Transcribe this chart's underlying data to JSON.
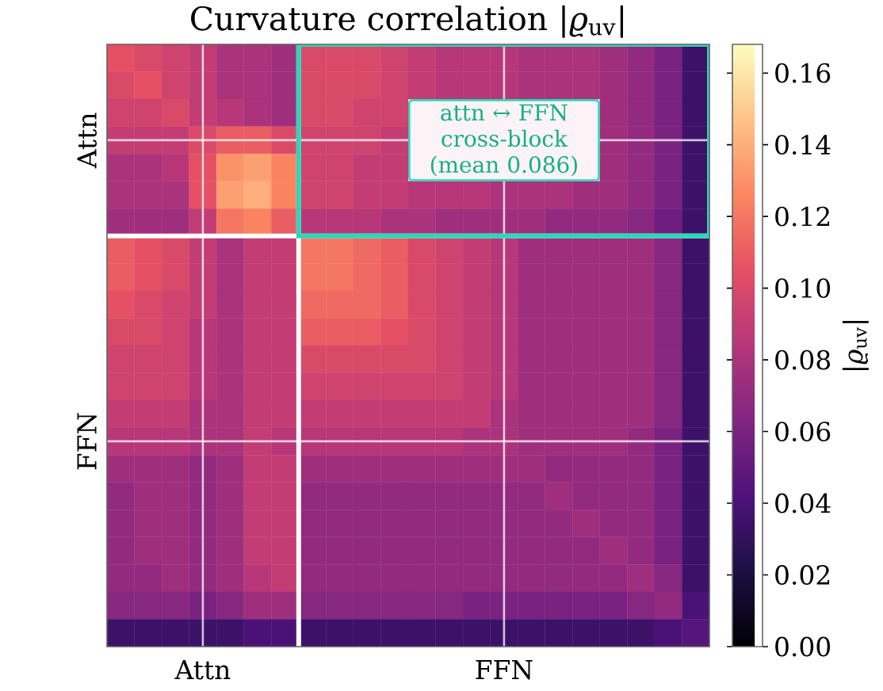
{
  "chart_data": {
    "type": "heatmap",
    "title": "Curvature correlation |*ϱ*$_{uv}$|",
    "categories": [
      null,
      null,
      null,
      "Attn",
      null,
      null,
      null,
      null,
      null,
      null,
      null,
      null,
      null,
      null,
      "FFN",
      null,
      null,
      null,
      null,
      null,
      null,
      null
    ],
    "y_categories": [
      null,
      null,
      null,
      "Attn",
      null,
      null,
      null,
      null,
      null,
      null,
      null,
      null,
      null,
      null,
      "FFN",
      null,
      null,
      null,
      null,
      null,
      null,
      null
    ],
    "cells": [
      [
        0.105,
        0.1,
        0.095,
        0.09,
        0.08,
        0.08,
        0.075,
        0.1,
        0.1,
        0.1,
        0.095,
        0.09,
        0.085,
        0.085,
        0.085,
        0.08,
        0.08,
        0.08,
        0.075,
        0.07,
        0.06,
        0.035
      ],
      [
        0.1,
        0.105,
        0.095,
        0.09,
        0.08,
        0.08,
        0.075,
        0.1,
        0.1,
        0.1,
        0.095,
        0.09,
        0.085,
        0.085,
        0.085,
        0.08,
        0.08,
        0.08,
        0.075,
        0.07,
        0.06,
        0.035
      ],
      [
        0.095,
        0.095,
        0.1,
        0.09,
        0.085,
        0.08,
        0.075,
        0.1,
        0.1,
        0.095,
        0.095,
        null,
        null,
        null,
        null,
        null,
        null,
        null,
        0.075,
        0.07,
        0.06,
        0.035
      ],
      [
        0.09,
        0.09,
        0.09,
        0.1,
        0.11,
        0.11,
        0.1,
        0.095,
        0.095,
        0.095,
        0.09,
        null,
        null,
        null,
        null,
        null,
        null,
        null,
        0.075,
        0.07,
        0.06,
        0.035
      ],
      [
        0.08,
        0.08,
        0.085,
        0.105,
        0.13,
        0.135,
        0.125,
        0.095,
        0.095,
        0.09,
        0.09,
        null,
        null,
        null,
        null,
        null,
        null,
        null,
        0.075,
        0.07,
        0.06,
        0.035
      ],
      [
        0.08,
        0.08,
        0.08,
        0.105,
        0.135,
        0.14,
        0.125,
        0.095,
        0.095,
        0.09,
        0.09,
        0.085,
        0.085,
        0.085,
        0.08,
        0.08,
        0.08,
        0.075,
        0.075,
        0.07,
        0.06,
        0.035
      ],
      [
        0.075,
        0.075,
        0.075,
        0.09,
        0.12,
        0.125,
        0.11,
        0.085,
        0.085,
        0.085,
        0.08,
        0.08,
        0.075,
        0.075,
        0.075,
        0.075,
        0.07,
        0.07,
        0.07,
        0.065,
        0.055,
        0.035
      ],
      [
        0.11,
        0.105,
        0.1,
        0.09,
        0.08,
        0.09,
        0.09,
        0.12,
        0.12,
        0.115,
        0.11,
        0.1,
        0.095,
        0.09,
        0.085,
        0.075,
        0.075,
        0.075,
        0.075,
        0.075,
        0.065,
        0.035
      ],
      [
        0.11,
        0.105,
        0.1,
        0.09,
        0.08,
        0.09,
        0.09,
        0.12,
        0.12,
        0.115,
        0.11,
        0.1,
        0.095,
        0.09,
        0.085,
        0.075,
        0.075,
        0.075,
        0.075,
        0.075,
        0.065,
        0.035
      ],
      [
        0.105,
        0.1,
        0.095,
        0.09,
        0.08,
        0.09,
        0.09,
        0.115,
        0.115,
        0.115,
        0.11,
        0.1,
        0.095,
        0.09,
        0.085,
        0.075,
        0.075,
        0.075,
        0.075,
        0.075,
        0.065,
        0.035
      ],
      [
        0.1,
        0.1,
        0.095,
        0.085,
        0.08,
        0.09,
        0.09,
        0.11,
        0.11,
        0.11,
        0.105,
        0.1,
        0.095,
        0.09,
        0.085,
        0.075,
        0.075,
        0.075,
        0.075,
        0.075,
        0.065,
        0.035
      ],
      [
        0.095,
        0.095,
        0.095,
        0.085,
        0.08,
        0.09,
        0.09,
        0.1,
        0.1,
        0.1,
        0.1,
        0.1,
        0.095,
        0.09,
        0.085,
        0.075,
        0.075,
        0.075,
        0.075,
        0.075,
        0.065,
        0.035
      ],
      [
        0.095,
        0.095,
        0.095,
        0.085,
        0.08,
        0.09,
        0.09,
        0.095,
        0.095,
        0.095,
        0.095,
        0.095,
        0.095,
        0.09,
        0.085,
        0.075,
        0.075,
        0.075,
        0.075,
        0.075,
        0.065,
        0.035
      ],
      [
        0.09,
        0.09,
        0.09,
        0.08,
        0.08,
        0.09,
        0.09,
        0.09,
        0.09,
        0.09,
        0.09,
        0.09,
        0.09,
        0.09,
        0.08,
        0.075,
        0.075,
        0.075,
        0.075,
        0.075,
        0.065,
        0.035
      ],
      [
        0.085,
        0.085,
        0.085,
        0.08,
        0.08,
        0.09,
        0.085,
        0.085,
        0.085,
        0.085,
        0.085,
        0.085,
        0.085,
        0.08,
        0.08,
        0.075,
        0.075,
        0.075,
        0.075,
        0.07,
        0.06,
        0.035
      ],
      [
        0.075,
        0.075,
        0.075,
        0.07,
        0.075,
        0.09,
        0.09,
        0.075,
        0.075,
        0.075,
        0.075,
        0.075,
        0.075,
        0.075,
        0.075,
        0.075,
        0.07,
        0.07,
        0.07,
        0.07,
        0.06,
        0.035
      ],
      [
        0.07,
        0.075,
        0.075,
        0.07,
        0.075,
        0.09,
        0.09,
        0.07,
        0.07,
        0.07,
        0.07,
        0.07,
        0.07,
        0.07,
        0.07,
        0.07,
        0.075,
        0.07,
        0.07,
        0.07,
        0.06,
        0.035
      ],
      [
        0.07,
        0.075,
        0.075,
        0.07,
        0.075,
        0.09,
        0.09,
        0.07,
        0.07,
        0.07,
        0.07,
        0.07,
        0.07,
        0.07,
        0.07,
        0.07,
        0.07,
        0.075,
        0.07,
        0.07,
        0.06,
        0.035
      ],
      [
        0.07,
        0.075,
        0.075,
        0.07,
        0.075,
        0.09,
        0.09,
        0.07,
        0.07,
        0.07,
        0.07,
        0.07,
        0.07,
        0.07,
        0.07,
        0.07,
        0.07,
        0.07,
        0.075,
        0.07,
        0.06,
        0.035
      ],
      [
        0.07,
        0.07,
        0.075,
        0.07,
        0.075,
        0.085,
        0.09,
        0.07,
        0.07,
        0.07,
        0.07,
        0.07,
        0.07,
        0.07,
        0.07,
        0.07,
        0.07,
        0.07,
        0.07,
        0.075,
        0.065,
        0.035
      ],
      [
        0.065,
        0.065,
        0.065,
        0.06,
        0.065,
        0.075,
        0.075,
        0.065,
        0.065,
        0.065,
        0.065,
        0.065,
        0.065,
        0.06,
        0.06,
        0.06,
        0.06,
        0.06,
        0.06,
        0.065,
        0.07,
        0.04
      ],
      [
        0.035,
        0.035,
        0.035,
        0.035,
        0.035,
        0.04,
        0.04,
        0.035,
        0.035,
        0.035,
        0.035,
        0.035,
        0.035,
        0.035,
        0.035,
        0.035,
        0.035,
        0.035,
        0.035,
        0.035,
        0.04,
        0.045
      ]
    ],
    "clim": [
      0,
      0.168
    ],
    "cticks": [
      {
        "value": 0,
        "label": "0.00"
      },
      0.02,
      0.04,
      0.06,
      0.08,
      {
        "value": 0.1,
        "label": "0.10"
      },
      0.12,
      0.14,
      0.16
    ],
    "clabel": "|*ϱ*$_{uv}$|",
    "grid": true,
    "annotations": [
      "attn ↔ FFN cross-block (mean 0.086)"
    ]
  }
}
